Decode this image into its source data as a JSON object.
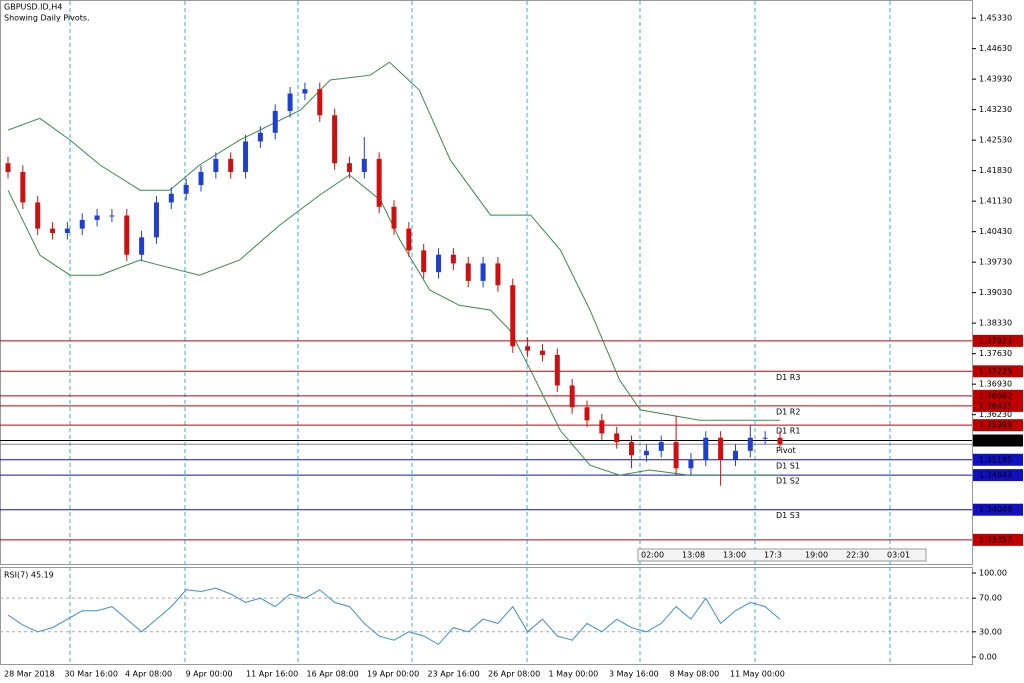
{
  "chart_data": {
    "type": "candlestick",
    "title": "GBPUSD.ID,H4",
    "subtitle": "Showing Daily Pivots.",
    "xlim": [
      0,
      52
    ],
    "ylim": [
      1.3278,
      1.457
    ],
    "yticks": [
      {
        "value": 1.4533,
        "label": "1.45330"
      },
      {
        "value": 1.4463,
        "label": "1.44630"
      },
      {
        "value": 1.4393,
        "label": "1.43930"
      },
      {
        "value": 1.4323,
        "label": "1.43230"
      },
      {
        "value": 1.4253,
        "label": "1.42530"
      },
      {
        "value": 1.4183,
        "label": "1.41830"
      },
      {
        "value": 1.4113,
        "label": "1.41130"
      },
      {
        "value": 1.4043,
        "label": "1.40430"
      },
      {
        "value": 1.3973,
        "label": "1.39730"
      },
      {
        "value": 1.3903,
        "label": "1.39030"
      },
      {
        "value": 1.3833,
        "label": "1.38330"
      },
      {
        "value": 1.3763,
        "label": "1.37630"
      },
      {
        "value": 1.3693,
        "label": "1.36930"
      },
      {
        "value": 1.3623,
        "label": "1.36230"
      }
    ],
    "up_color": "#1f3fd0",
    "down_color": "#d01010",
    "open": [
      1.42,
      1.418,
      1.411,
      1.405,
      1.404,
      1.405,
      1.407,
      1.408,
      1.408,
      1.399,
      1.403,
      1.411,
      1.413,
      1.415,
      1.418,
      1.421,
      1.418,
      1.425,
      1.427,
      1.432,
      1.436,
      1.437,
      1.431,
      1.42,
      1.418,
      1.421,
      1.41,
      1.405,
      1.4,
      1.395,
      1.399,
      1.397,
      1.393,
      1.397,
      1.392,
      1.378,
      1.377,
      1.376,
      1.369,
      1.364,
      1.361,
      1.358,
      1.356,
      1.353,
      1.354,
      1.356,
      1.35,
      1.352,
      1.357,
      1.352,
      1.354,
      1.357,
      1.357
    ],
    "high": [
      1.4215,
      1.4195,
      1.4125,
      1.4065,
      1.4065,
      1.4085,
      1.4095,
      1.4095,
      1.4095,
      1.4045,
      1.4125,
      1.4145,
      1.4165,
      1.4195,
      1.4225,
      1.4225,
      1.4265,
      1.4285,
      1.4335,
      1.4375,
      1.4385,
      1.4385,
      1.4325,
      1.4215,
      1.426,
      1.4225,
      1.4115,
      1.4065,
      1.4015,
      1.4005,
      1.4005,
      1.3985,
      1.3985,
      1.3985,
      1.3935,
      1.38,
      1.3785,
      1.3775,
      1.3705,
      1.3655,
      1.3625,
      1.3595,
      1.3575,
      1.3555,
      1.3575,
      1.362,
      1.3535,
      1.3585,
      1.3585,
      1.3555,
      1.36,
      1.3585,
      1.3585
    ],
    "low": [
      1.4165,
      1.4095,
      1.4035,
      1.4025,
      1.4025,
      1.4035,
      1.4055,
      1.4065,
      1.3975,
      1.3975,
      1.4015,
      1.4095,
      1.4115,
      1.4135,
      1.4165,
      1.4165,
      1.4165,
      1.4235,
      1.4255,
      1.4305,
      1.4345,
      1.4295,
      1.4185,
      1.4165,
      1.4165,
      1.4085,
      1.4035,
      1.3985,
      1.3935,
      1.3935,
      1.3955,
      1.3915,
      1.3915,
      1.3905,
      1.3765,
      1.3755,
      1.3745,
      1.3675,
      1.3625,
      1.3595,
      1.3565,
      1.3545,
      1.35,
      1.3515,
      1.3525,
      1.3485,
      1.3485,
      1.3505,
      1.346,
      1.3505,
      1.3525,
      1.3555,
      1.354
    ],
    "close": [
      1.418,
      1.411,
      1.405,
      1.404,
      1.405,
      1.407,
      1.408,
      1.408,
      1.399,
      1.403,
      1.411,
      1.413,
      1.415,
      1.418,
      1.421,
      1.418,
      1.425,
      1.427,
      1.432,
      1.436,
      1.437,
      1.431,
      1.42,
      1.418,
      1.421,
      1.41,
      1.405,
      1.4,
      1.395,
      1.399,
      1.397,
      1.393,
      1.397,
      1.392,
      1.378,
      1.377,
      1.376,
      1.369,
      1.364,
      1.361,
      1.358,
      1.356,
      1.353,
      1.354,
      1.356,
      1.35,
      1.352,
      1.357,
      1.352,
      1.354,
      1.357,
      1.357,
      1.3555
    ],
    "bands": [
      {
        "color": "#3a8a4a",
        "x": [
          0,
          2.15,
          4.18,
          6.2,
          8.9,
          10.9,
          12.9,
          15.6,
          19.7,
          21.7,
          24.4,
          25.7,
          27.7,
          29.8,
          32.5,
          35.2,
          37.2,
          39.2,
          41.2,
          42.6,
          46.6,
          52
        ],
        "values": [
          1.4276,
          1.4303,
          1.4253,
          1.4196,
          1.4138,
          1.4138,
          1.4196,
          1.4253,
          1.4322,
          1.4391,
          1.4402,
          1.4432,
          1.4368,
          1.4207,
          1.4081,
          1.4081,
          1.4001,
          1.3863,
          1.3702,
          1.3634,
          1.361,
          1.361
        ]
      },
      {
        "color": "#3a8a4a",
        "x": [
          0,
          2.15,
          4.18,
          6.2,
          8.9,
          10.2,
          12.9,
          15.6,
          18.3,
          21,
          23,
          25.1,
          26.4,
          28.4,
          30.4,
          32.5,
          33.8,
          35.2,
          37.2,
          39.2,
          41.2,
          43.2,
          45.9,
          52
        ],
        "values": [
          1.4138,
          1.3989,
          1.3943,
          1.3943,
          1.3978,
          1.3966,
          1.3943,
          1.3978,
          1.4058,
          1.4127,
          1.4173,
          1.4115,
          1.4024,
          1.3909,
          1.3874,
          1.3863,
          1.3817,
          1.3725,
          1.3587,
          1.3507,
          1.3484,
          1.3496,
          1.3484,
          1.3484
        ]
      }
    ],
    "levels": [
      {
        "value": 1.37923,
        "color": "#c00000"
      },
      {
        "value": 1.37225,
        "color": "#c00000",
        "name": "D1 R3"
      },
      {
        "value": 1.36662,
        "color": "#c00000"
      },
      {
        "value": 1.36431,
        "color": "#c00000",
        "name": "D1 R2"
      },
      {
        "value": 1.35989,
        "color": "#c00000",
        "name": "D1 R1"
      },
      {
        "value": 1.35637,
        "color": "#000000"
      },
      {
        "value": 1.3555,
        "color": "#888888",
        "name": "Pivot",
        "box": false
      },
      {
        "value": 1.35195,
        "color": "#1010c0",
        "name": "D1 S1"
      },
      {
        "value": 1.34843,
        "color": "#1010c0",
        "name": "D1 S2"
      },
      {
        "value": 1.34049,
        "color": "#1010c0",
        "name": "D1 S3"
      },
      {
        "value": 1.33357,
        "color": "#c00000"
      }
    ],
    "x_labels": [
      "28 Mar 2018",
      "30 Mar 16:00",
      "4 Apr 08:00",
      "9 Apr 00:00",
      "11 Apr 16:00",
      "16 Apr 08:00",
      "19 Apr 00:00",
      "23 Apr 16:00",
      "26 Apr 08:00",
      "1 May 00:00",
      "3 May 16:00",
      "8 May 08:00",
      "11 May 00:00"
    ],
    "session_times": [
      "02:00",
      "13:08",
      "13:00",
      "17:3",
      "19:00",
      "22:30",
      "03:01"
    ],
    "rsi": {
      "title": "RSI(7) 45.19",
      "color": "#3a8ee0",
      "ylim": [
        -9.5,
        107.1
      ],
      "yticks": [
        {
          "value": 100,
          "label": "100.00"
        },
        {
          "value": 70,
          "label": "70.00"
        },
        {
          "value": 30,
          "label": "30.00"
        },
        {
          "value": 0,
          "label": "0.00"
        }
      ],
      "values": [
        50,
        38,
        30,
        35,
        45,
        55,
        55,
        60,
        45,
        30,
        45,
        60,
        80,
        78,
        82,
        75,
        65,
        70,
        60,
        75,
        70,
        80,
        65,
        60,
        40,
        25,
        20,
        30,
        25,
        15,
        35,
        30,
        45,
        40,
        60,
        30,
        45,
        25,
        20,
        40,
        30,
        45,
        35,
        30,
        40,
        60,
        45,
        70,
        40,
        55,
        65,
        60,
        45
      ]
    }
  }
}
